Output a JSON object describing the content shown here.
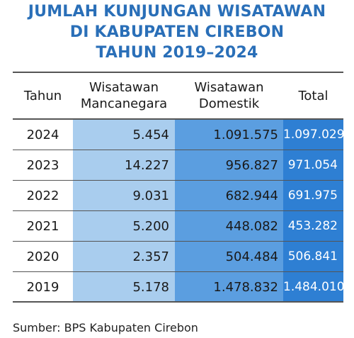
{
  "title_lines": [
    "JUMLAH KUNJUNGAN WISATAWAN",
    "DI KABUPATEN CIREBON",
    "TAHUN 2019–2024"
  ],
  "source": "Sumber: BPS Kabupaten Cirebon",
  "colors": {
    "title": "#2a6fb8",
    "col_mancanegara": "#a9cdee",
    "col_domestik": "#5b9ee0",
    "col_total": "#2e7fd3"
  },
  "chart_data": {
    "type": "table",
    "title": "JUMLAH KUNJUNGAN WISATAWAN DI KABUPATEN CIREBON TAHUN 2019–2024",
    "columns": [
      {
        "line1": "Tahun",
        "line2": ""
      },
      {
        "line1": "Wisatawan",
        "line2": "Mancanegara"
      },
      {
        "line1": "Wisatawan",
        "line2": "Domestik"
      },
      {
        "line1": "Total",
        "line2": ""
      }
    ],
    "rows": [
      [
        "2024",
        "5.454",
        "1.091.575",
        "1.097.029"
      ],
      [
        "2023",
        "14.227",
        "956.827",
        "971.054"
      ],
      [
        "2022",
        "9.031",
        "682.944",
        "691.975"
      ],
      [
        "2021",
        "5.200",
        "448.082",
        "453.282"
      ],
      [
        "2020",
        "2.357",
        "504.484",
        "506.841"
      ],
      [
        "2019",
        "5.178",
        "1.478.832",
        "1.484.010"
      ]
    ]
  }
}
